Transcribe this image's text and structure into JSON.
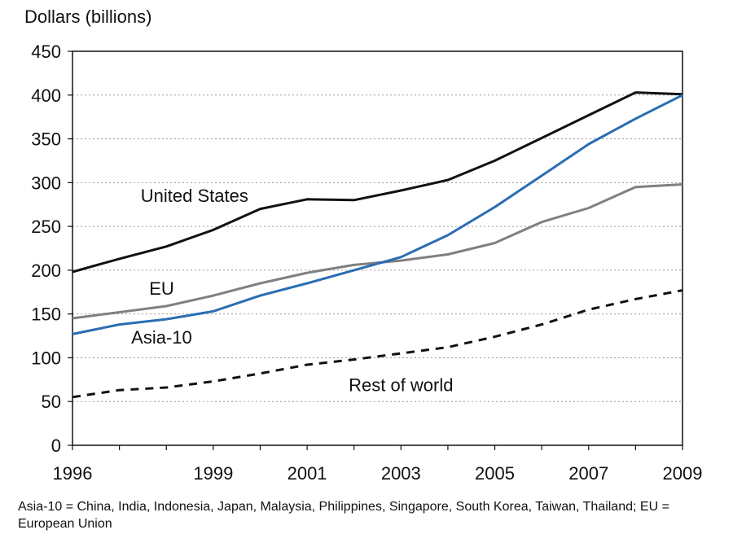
{
  "chart_data": {
    "type": "line",
    "title": "",
    "ylabel": "Dollars (billions)",
    "xlabel": "",
    "xlim": [
      1996,
      2009
    ],
    "ylim": [
      0,
      450
    ],
    "yticks": [
      0,
      50,
      100,
      150,
      200,
      250,
      300,
      350,
      400,
      450
    ],
    "xtick_labels": [
      1996,
      1999,
      2001,
      2003,
      2005,
      2007,
      2009
    ],
    "grid": "horizontal-dotted",
    "x": [
      1996,
      1997,
      1998,
      1999,
      2000,
      2001,
      2002,
      2003,
      2004,
      2005,
      2006,
      2007,
      2008,
      2009
    ],
    "series": [
      {
        "name": "United States",
        "color": "#111111",
        "dash": "solid",
        "values": [
          198,
          213,
          227,
          246,
          270,
          281,
          280,
          291,
          303,
          325,
          351,
          377,
          403,
          401
        ]
      },
      {
        "name": "EU",
        "color": "#808080",
        "dash": "solid",
        "values": [
          145,
          152,
          159,
          171,
          185,
          197,
          206,
          211,
          218,
          231,
          255,
          271,
          295,
          298
        ]
      },
      {
        "name": "Asia-10",
        "color": "#2a6db3",
        "dash": "solid",
        "values": [
          127,
          138,
          144,
          153,
          171,
          185,
          200,
          215,
          240,
          272,
          308,
          344,
          373,
          400
        ]
      },
      {
        "name": "Rest of world",
        "color": "#111111",
        "dash": "dashed",
        "values": [
          55,
          63,
          66,
          73,
          82,
          92,
          98,
          105,
          112,
          124,
          138,
          155,
          167,
          177
        ]
      }
    ]
  },
  "footnote": "Asia-10 = China, India, Indonesia, Japan, Malaysia, Philippines, Singapore, South Korea, Taiwan, Thailand; EU = European Union"
}
